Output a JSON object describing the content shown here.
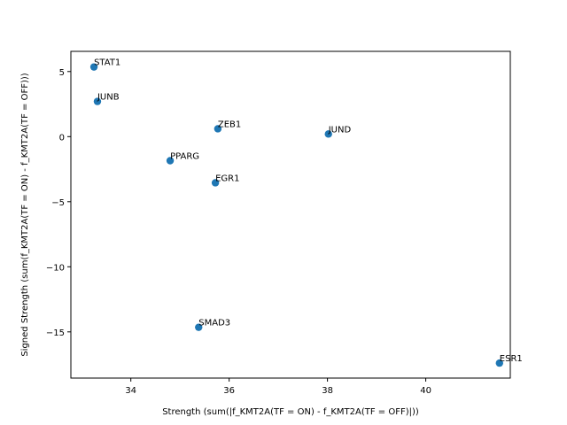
{
  "chart_data": {
    "type": "scatter",
    "title": "",
    "xlabel": "Strength (sum(|f_KMT2A(TF = ON) - f_KMT2A(TF = OFF)|))",
    "ylabel": "Signed Strength (sum(f_KMT2A(TF = ON) - f_KMT2A(TF = OFF)))",
    "xlim": [
      32.78,
      41.72
    ],
    "ylim": [
      -18.55,
      6.55
    ],
    "xticks": [
      34,
      36,
      38,
      40
    ],
    "yticks": [
      5,
      0,
      -5,
      -10,
      -15
    ],
    "grid": false,
    "color": "#1f77b4",
    "points": [
      {
        "label": "STAT1",
        "x": 33.25,
        "y": 5.35
      },
      {
        "label": "JUNB",
        "x": 33.32,
        "y": 2.7
      },
      {
        "label": "ZEB1",
        "x": 35.77,
        "y": 0.6
      },
      {
        "label": "JUND",
        "x": 38.02,
        "y": 0.2
      },
      {
        "label": "PPARG",
        "x": 34.8,
        "y": -1.85
      },
      {
        "label": "EGR1",
        "x": 35.72,
        "y": -3.55
      },
      {
        "label": "SMAD3",
        "x": 35.38,
        "y": -14.65
      },
      {
        "label": "ESR1",
        "x": 41.5,
        "y": -17.4
      }
    ]
  }
}
